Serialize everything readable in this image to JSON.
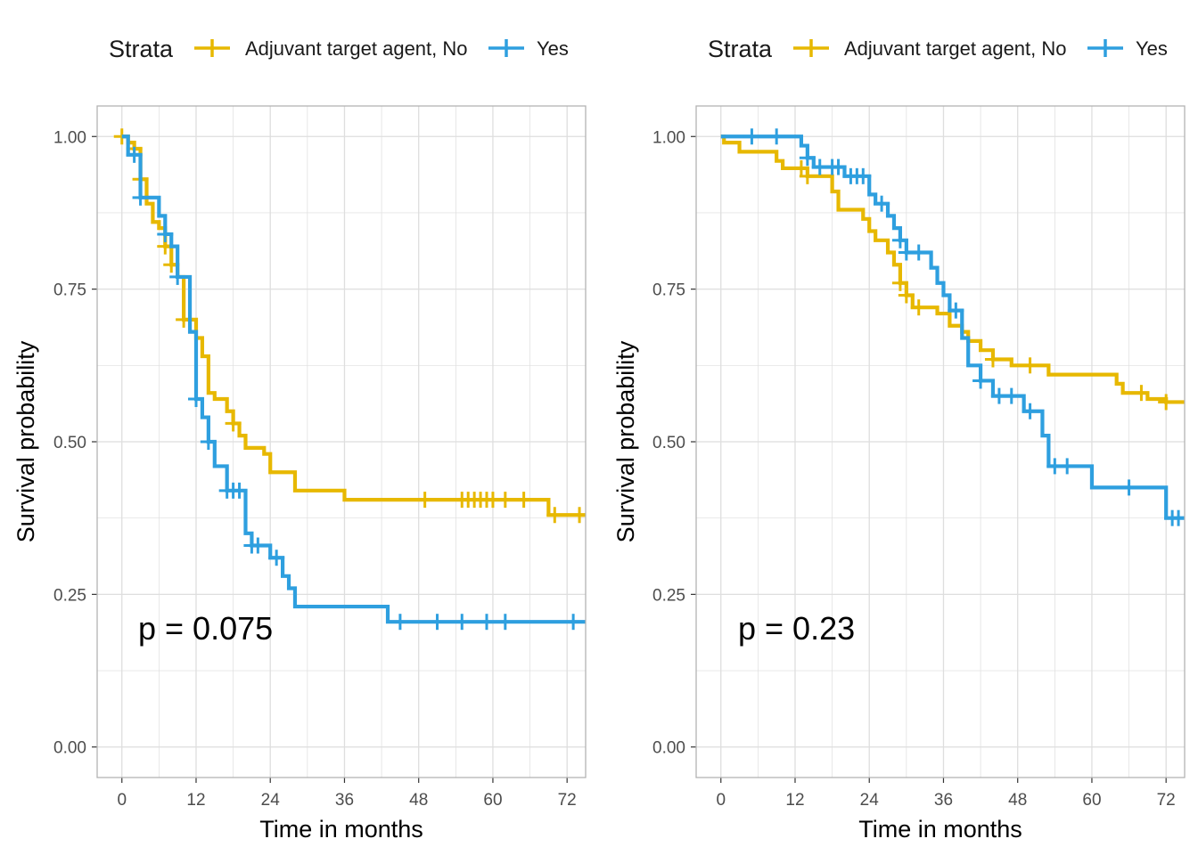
{
  "colors": {
    "no": "#E7B800",
    "yes": "#2E9FDF",
    "grid": "#dedede",
    "border": "#b3b3b3"
  },
  "legend": {
    "title": "Strata",
    "labels": [
      "Adjuvant target agent, No",
      "Yes"
    ]
  },
  "chart_data": [
    {
      "type": "line",
      "title": "",
      "xlabel": "Time in months",
      "ylabel": "Survival probability",
      "xlim": [
        -4,
        75
      ],
      "ylim": [
        -0.05,
        1.05
      ],
      "x_ticks": [
        "0",
        "12",
        "24",
        "36",
        "48",
        "60",
        "72"
      ],
      "y_ticks": [
        "0.00",
        "0.25",
        "0.50",
        "0.75",
        "1.00"
      ],
      "grid": true,
      "legend_position": "top",
      "annotation": "p = 0.075",
      "series": [
        {
          "name": "Adjuvant target agent, No",
          "steps": [
            [
              0,
              1.0
            ],
            [
              1,
              0.99
            ],
            [
              2,
              0.98
            ],
            [
              3,
              0.93
            ],
            [
              4,
              0.89
            ],
            [
              5,
              0.86
            ],
            [
              6,
              0.85
            ],
            [
              7,
              0.82
            ],
            [
              8,
              0.79
            ],
            [
              9,
              0.77
            ],
            [
              10,
              0.7
            ],
            [
              12,
              0.67
            ],
            [
              13,
              0.64
            ],
            [
              14,
              0.58
            ],
            [
              15,
              0.57
            ],
            [
              17,
              0.55
            ],
            [
              18,
              0.53
            ],
            [
              19,
              0.51
            ],
            [
              20,
              0.49
            ],
            [
              23,
              0.48
            ],
            [
              24,
              0.45
            ],
            [
              28,
              0.42
            ],
            [
              36,
              0.405
            ],
            [
              69,
              0.38
            ],
            [
              75,
              0.38
            ]
          ],
          "censor": [
            0,
            2,
            3,
            7,
            8,
            10,
            18,
            49,
            55,
            56,
            57,
            58,
            59,
            60,
            62,
            65,
            70,
            74
          ]
        },
        {
          "name": "Yes",
          "steps": [
            [
              0,
              1.0
            ],
            [
              1,
              0.97
            ],
            [
              2,
              0.97
            ],
            [
              3,
              0.9
            ],
            [
              6,
              0.87
            ],
            [
              7,
              0.84
            ],
            [
              8,
              0.82
            ],
            [
              9,
              0.77
            ],
            [
              11,
              0.68
            ],
            [
              12,
              0.57
            ],
            [
              13,
              0.54
            ],
            [
              14,
              0.5
            ],
            [
              15,
              0.46
            ],
            [
              17,
              0.42
            ],
            [
              19,
              0.42
            ],
            [
              20,
              0.35
            ],
            [
              21,
              0.33
            ],
            [
              24,
              0.31
            ],
            [
              26,
              0.28
            ],
            [
              27,
              0.26
            ],
            [
              28,
              0.23
            ],
            [
              43,
              0.205
            ],
            [
              75,
              0.205
            ]
          ],
          "censor": [
            2,
            3,
            7,
            9,
            12,
            14,
            17,
            18,
            19,
            21,
            22,
            25,
            45,
            51,
            55,
            59,
            62,
            73
          ]
        }
      ]
    },
    {
      "type": "line",
      "title": "",
      "xlabel": "Time in months",
      "ylabel": "Survival probability",
      "xlim": [
        -4,
        75
      ],
      "ylim": [
        -0.05,
        1.05
      ],
      "x_ticks": [
        "0",
        "12",
        "24",
        "36",
        "48",
        "60",
        "72"
      ],
      "y_ticks": [
        "0.00",
        "0.25",
        "0.50",
        "0.75",
        "1.00"
      ],
      "grid": true,
      "legend_position": "top",
      "annotation": "p = 0.23",
      "series": [
        {
          "name": "Adjuvant target agent, No",
          "steps": [
            [
              0,
              1.0
            ],
            [
              0.5,
              0.99
            ],
            [
              3,
              0.975
            ],
            [
              9,
              0.96
            ],
            [
              10,
              0.948
            ],
            [
              14,
              0.935
            ],
            [
              18,
              0.91
            ],
            [
              19,
              0.88
            ],
            [
              23,
              0.865
            ],
            [
              24,
              0.845
            ],
            [
              25,
              0.83
            ],
            [
              27,
              0.81
            ],
            [
              28,
              0.79
            ],
            [
              29,
              0.76
            ],
            [
              30,
              0.74
            ],
            [
              31,
              0.72
            ],
            [
              35,
              0.71
            ],
            [
              37,
              0.69
            ],
            [
              39,
              0.68
            ],
            [
              40,
              0.665
            ],
            [
              42,
              0.65
            ],
            [
              44,
              0.635
            ],
            [
              47,
              0.625
            ],
            [
              53,
              0.61
            ],
            [
              64,
              0.595
            ],
            [
              65,
              0.58
            ],
            [
              69,
              0.57
            ],
            [
              72,
              0.565
            ],
            [
              75,
              0.565
            ]
          ],
          "censor": [
            13,
            14,
            29,
            30,
            32,
            44,
            50,
            68,
            72
          ]
        },
        {
          "name": "Yes",
          "steps": [
            [
              0,
              1.0
            ],
            [
              13,
              0.985
            ],
            [
              14,
              0.965
            ],
            [
              15,
              0.95
            ],
            [
              20,
              0.935
            ],
            [
              24,
              0.905
            ],
            [
              25,
              0.89
            ],
            [
              27,
              0.87
            ],
            [
              28,
              0.85
            ],
            [
              29,
              0.83
            ],
            [
              30,
              0.81
            ],
            [
              34,
              0.785
            ],
            [
              35,
              0.76
            ],
            [
              36,
              0.74
            ],
            [
              37,
              0.715
            ],
            [
              39,
              0.67
            ],
            [
              40,
              0.625
            ],
            [
              42,
              0.6
            ],
            [
              44,
              0.575
            ],
            [
              49,
              0.55
            ],
            [
              52,
              0.51
            ],
            [
              53,
              0.46
            ],
            [
              60,
              0.425
            ],
            [
              72,
              0.375
            ],
            [
              75,
              0.375
            ]
          ],
          "censor": [
            5,
            9,
            14,
            16,
            18,
            19,
            21,
            22,
            23,
            26,
            29,
            30,
            32,
            38,
            42,
            45,
            47,
            50,
            54,
            56,
            66,
            73,
            74
          ]
        }
      ]
    }
  ]
}
